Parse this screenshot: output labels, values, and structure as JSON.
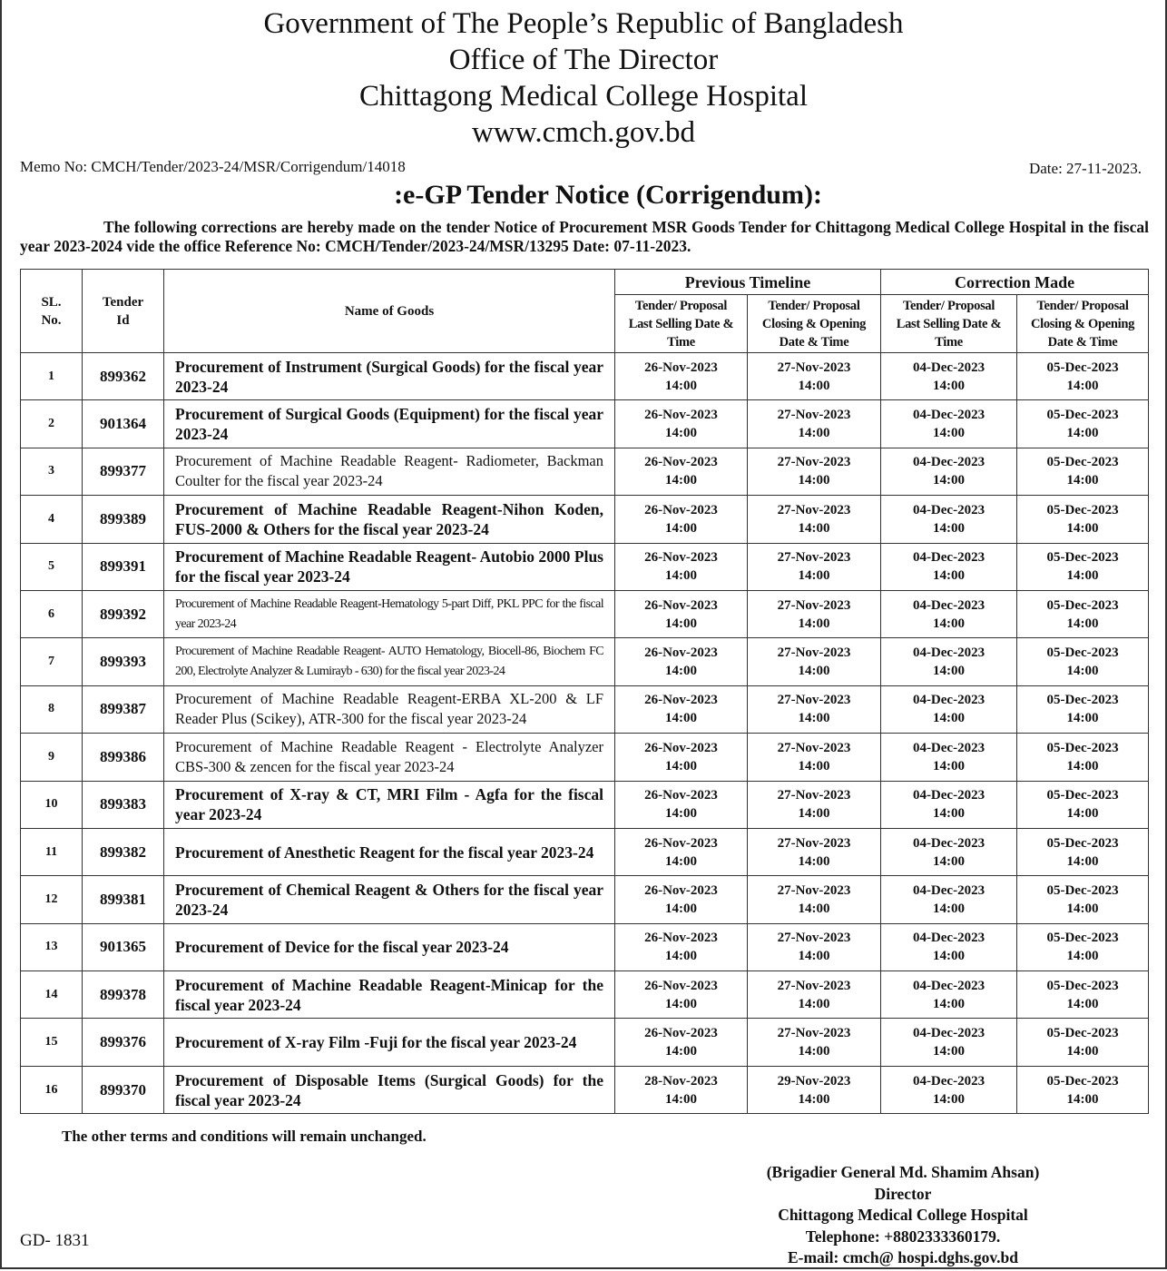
{
  "header": {
    "line1": "Government of The People’s Republic of Bangladesh",
    "line2": "Office of The Director",
    "line3": "Chittagong Medical College Hospital",
    "line4": "www.cmch.gov.bd"
  },
  "memo": "Memo No: CMCH/Tender/2023-24/MSR/Corrigendum/14018",
  "date": "Date: 27-11-2023.",
  "notice_title": ":e-GP Tender Notice (Corrigendum):",
  "paragraph": "The following corrections are hereby made on the tender Notice of Procurement MSR Goods Tender for Chittagong Medical College Hospital in the fiscal year 2023-2024 vide the office Reference No: CMCH/Tender/2023-24/MSR/13295  Date: 07-11-2023.",
  "table": {
    "headers": {
      "sl": "SL. No.",
      "tender_id": "Tender Id",
      "name": "Name of Goods",
      "previous": "Previous Timeline",
      "correction": "Correction Made",
      "last_selling": "Tender/ Proposal Last Selling Date & Time",
      "closing_opening": "Tender/ Proposal Closing & Opening Date & Time"
    },
    "rows": [
      {
        "sl": "1",
        "id": "899362",
        "name": "Procurement of Instrument (Surgical Goods) for the fiscal year 2023-24",
        "prev_sell": "26-Nov-2023 14:00",
        "prev_close": "27-Nov-2023 14:00",
        "new_sell": "04-Dec-2023 14:00",
        "new_close": "05-Dec-2023 14:00"
      },
      {
        "sl": "2",
        "id": "901364",
        "name": "Procurement of Surgical Goods (Equipment) for the fiscal year 2023-24",
        "prev_sell": "26-Nov-2023 14:00",
        "prev_close": "27-Nov-2023 14:00",
        "new_sell": "04-Dec-2023 14:00",
        "new_close": "05-Dec-2023 14:00"
      },
      {
        "sl": "3",
        "id": "899377",
        "name": "Procurement of Machine Readable Reagent- Radiometer, Backman Coulter for the fiscal year 2023-24",
        "prev_sell": "26-Nov-2023 14:00",
        "prev_close": "27-Nov-2023 14:00",
        "new_sell": "04-Dec-2023 14:00",
        "new_close": "05-Dec-2023 14:00"
      },
      {
        "sl": "4",
        "id": "899389",
        "name": "Procurement of Machine Readable Reagent-Nihon Koden, FUS-2000 & Others for the fiscal year 2023-24",
        "prev_sell": "26-Nov-2023 14:00",
        "prev_close": "27-Nov-2023 14:00",
        "new_sell": "04-Dec-2023 14:00",
        "new_close": "05-Dec-2023 14:00"
      },
      {
        "sl": "5",
        "id": "899391",
        "name": "Procurement of Machine Readable Reagent- Autobio 2000 Plus for the fiscal year 2023-24",
        "prev_sell": "26-Nov-2023 14:00",
        "prev_close": "27-Nov-2023 14:00",
        "new_sell": "04-Dec-2023 14:00",
        "new_close": "05-Dec-2023 14:00"
      },
      {
        "sl": "6",
        "id": "899392",
        "name": "Procurement of Machine Readable Reagent-Hematology 5-part Diff, PKL PPC for the fiscal year 2023-24",
        "prev_sell": "26-Nov-2023 14:00",
        "prev_close": "27-Nov-2023 14:00",
        "new_sell": "04-Dec-2023 14:00",
        "new_close": "05-Dec-2023 14:00"
      },
      {
        "sl": "7",
        "id": "899393",
        "name": "Procurement of Machine Readable Reagent- AUTO Hematology, Biocell-86, Biochem FC 200, Electrolyte Analyzer & Lumirayb - 630) for the fiscal year 2023-24",
        "prev_sell": "26-Nov-2023 14:00",
        "prev_close": "27-Nov-2023 14:00",
        "new_sell": "04-Dec-2023 14:00",
        "new_close": "05-Dec-2023 14:00"
      },
      {
        "sl": "8",
        "id": "899387",
        "name": "Procurement of Machine Readable Reagent-ERBA XL-200 & LF Reader Plus (Scikey), ATR-300 for the fiscal year 2023-24",
        "prev_sell": "26-Nov-2023 14:00",
        "prev_close": "27-Nov-2023 14:00",
        "new_sell": "04-Dec-2023 14:00",
        "new_close": "05-Dec-2023 14:00"
      },
      {
        "sl": "9",
        "id": "899386",
        "name": "Procurement of Machine Readable Reagent - Electrolyte Analyzer CBS-300 & zencen for the fiscal year 2023-24",
        "prev_sell": "26-Nov-2023 14:00",
        "prev_close": "27-Nov-2023 14:00",
        "new_sell": "04-Dec-2023 14:00",
        "new_close": "05-Dec-2023 14:00"
      },
      {
        "sl": "10",
        "id": "899383",
        "name": "Procurement of X-ray & CT, MRI Film - Agfa for the fiscal year 2023-24",
        "prev_sell": "26-Nov-2023 14:00",
        "prev_close": "27-Nov-2023 14:00",
        "new_sell": "04-Dec-2023 14:00",
        "new_close": "05-Dec-2023 14:00"
      },
      {
        "sl": "11",
        "id": "899382",
        "name": "Procurement of Anesthetic Reagent for the fiscal year 2023-24",
        "prev_sell": "26-Nov-2023 14:00",
        "prev_close": "27-Nov-2023 14:00",
        "new_sell": "04-Dec-2023 14:00",
        "new_close": "05-Dec-2023 14:00"
      },
      {
        "sl": "12",
        "id": "899381",
        "name": "Procurement of Chemical Reagent & Others for the fiscal year 2023-24",
        "prev_sell": "26-Nov-2023 14:00",
        "prev_close": "27-Nov-2023 14:00",
        "new_sell": "04-Dec-2023 14:00",
        "new_close": "05-Dec-2023 14:00"
      },
      {
        "sl": "13",
        "id": "901365",
        "name": "Procurement of Device for the fiscal year 2023-24",
        "prev_sell": "26-Nov-2023 14:00",
        "prev_close": "27-Nov-2023 14:00",
        "new_sell": "04-Dec-2023 14:00",
        "new_close": "05-Dec-2023 14:00"
      },
      {
        "sl": "14",
        "id": "899378",
        "name": "Procurement of Machine Readable Reagent-Minicap for the fiscal year 2023-24",
        "prev_sell": "26-Nov-2023 14:00",
        "prev_close": "27-Nov-2023 14:00",
        "new_sell": "04-Dec-2023 14:00",
        "new_close": "05-Dec-2023 14:00"
      },
      {
        "sl": "15",
        "id": "899376",
        "name": "Procurement of X-ray Film -Fuji for the fiscal year 2023-24",
        "prev_sell": "26-Nov-2023 14:00",
        "prev_close": "27-Nov-2023 14:00",
        "new_sell": "04-Dec-2023 14:00",
        "new_close": "05-Dec-2023 14:00"
      },
      {
        "sl": "16",
        "id": "899370",
        "name": "Procurement of Disposable Items (Surgical Goods) for the fiscal year 2023-24",
        "prev_sell": "28-Nov-2023 14:00",
        "prev_close": "29-Nov-2023 14:00",
        "new_sell": "04-Dec-2023 14:00",
        "new_close": "05-Dec-2023 14:00"
      }
    ]
  },
  "footnote": "The other terms and conditions will remain unchanged.",
  "signature": {
    "name": "(Brigadier General Md. Shamim Ahsan)",
    "title": "Director",
    "org": "Chittagong Medical College Hospital",
    "phone": "Telephone: +8802333360179.",
    "email": "E-mail: cmch@ hospi.dghs.gov.bd"
  },
  "gd": "GD- 1831"
}
